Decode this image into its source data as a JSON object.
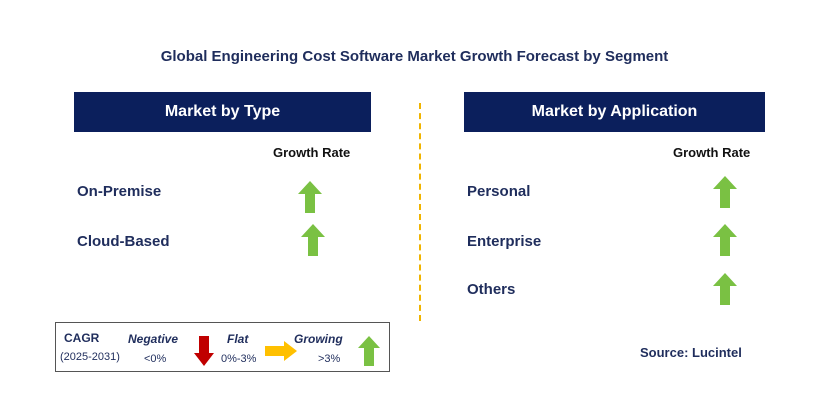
{
  "title": "Global Engineering Cost Software Market Growth Forecast by Segment",
  "colors": {
    "header_bg": "#0b1f5c",
    "text_navy": "#1f2d5c",
    "growing": "#7ac143",
    "negative": "#c00000",
    "flat": "#ffc000",
    "divider": "#f0b400"
  },
  "left_panel": {
    "header": "Market by Type",
    "growth_rate_label": "Growth Rate",
    "segments": [
      {
        "label": "On-Premise",
        "trend": "growing"
      },
      {
        "label": "Cloud-Based",
        "trend": "growing"
      }
    ]
  },
  "right_panel": {
    "header": "Market by Application",
    "growth_rate_label": "Growth Rate",
    "segments": [
      {
        "label": "Personal",
        "trend": "growing"
      },
      {
        "label": "Enterprise",
        "trend": "growing"
      },
      {
        "label": "Others",
        "trend": "growing"
      }
    ]
  },
  "legend": {
    "cagr": "CAGR",
    "years": "(2025-2031)",
    "negative": {
      "label": "Negative",
      "range": "<0%",
      "icon": "red-down-arrow-icon"
    },
    "flat": {
      "label": "Flat",
      "range": "0%-3%",
      "icon": "yellow-right-arrow-icon"
    },
    "growing": {
      "label": "Growing",
      "range": ">3%",
      "icon": "green-up-arrow-icon"
    }
  },
  "source": "Source: Lucintel"
}
